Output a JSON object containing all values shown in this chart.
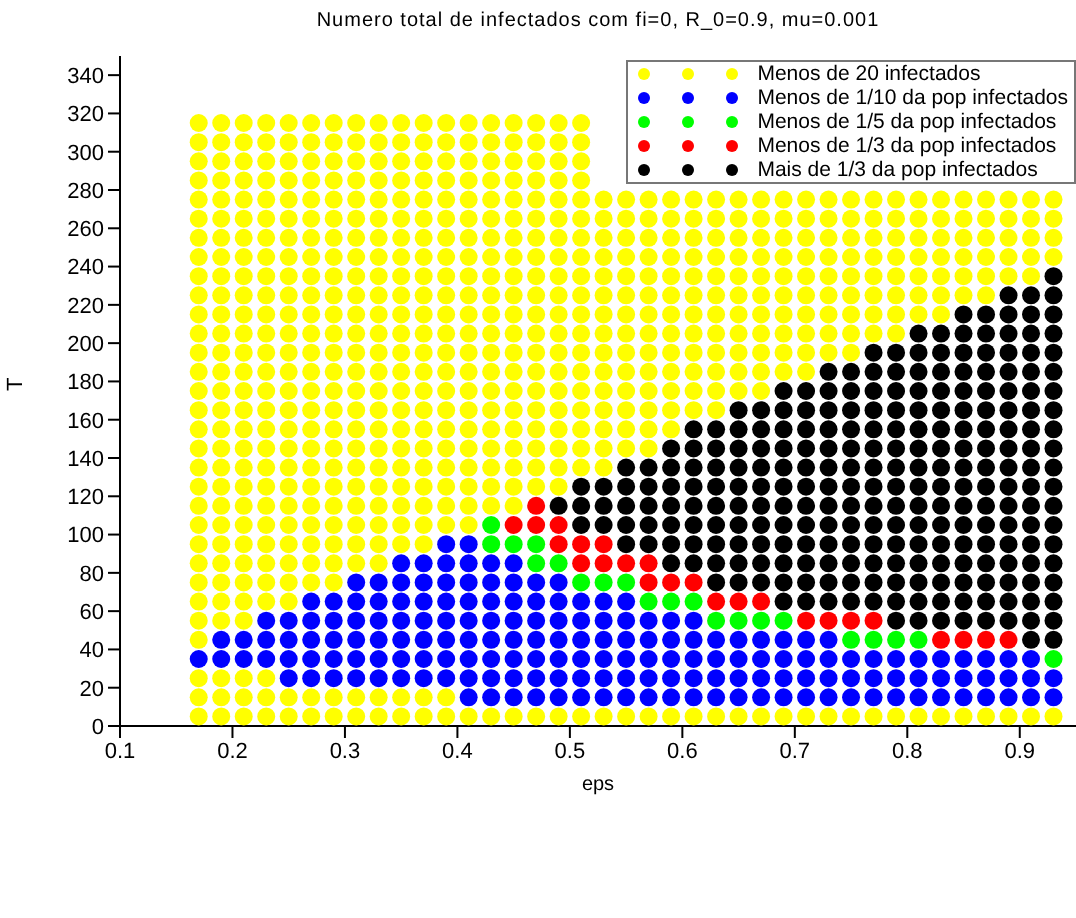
{
  "chart_data": {
    "type": "scatter",
    "title": "Numero total de infectados com fi=0, R_0=0.9,  mu=0.001",
    "xlabel": "eps",
    "ylabel": "T",
    "xlim": [
      0.1,
      0.95
    ],
    "xticks": [
      0.1,
      0.2,
      0.3,
      0.4,
      0.5,
      0.6,
      0.7,
      0.8,
      0.9
    ],
    "ylim": [
      0,
      350
    ],
    "yticks": [
      0,
      20,
      40,
      60,
      80,
      100,
      120,
      140,
      160,
      180,
      200,
      220,
      240,
      260,
      280,
      300,
      320,
      340
    ],
    "marker": "circle",
    "legend": "top right",
    "series": [
      {
        "name": "Menos de 20 infectados",
        "color": "#ffff00",
        "x": [
          0.17,
          0.19,
          0.21,
          0.23,
          0.25,
          0.27,
          0.29,
          0.31,
          0.33,
          0.35,
          0.37,
          0.39,
          0.41,
          0.43,
          0.45,
          0.47,
          0.49,
          0.51,
          0.53,
          0.55,
          0.57,
          0.59,
          0.61,
          0.63,
          0.65,
          0.67,
          0.69,
          0.71,
          0.73,
          0.75,
          0.77,
          0.79,
          0.81,
          0.83,
          0.85,
          0.87,
          0.89,
          0.91,
          0.93,
          0.17,
          0.19,
          0.21,
          0.23,
          0.25,
          0.27,
          0.29,
          0.31,
          0.33,
          0.35,
          0.37,
          0.39,
          0.17,
          0.19,
          0.21,
          0.23,
          0.17,
          0.17,
          0.19,
          0.21,
          0.17,
          0.19,
          0.21,
          0.23,
          0.25,
          0.17,
          0.19,
          0.21,
          0.23,
          0.25,
          0.27,
          0.29,
          0.17,
          0.19,
          0.21,
          0.23,
          0.25,
          0.27,
          0.29,
          0.31,
          0.33,
          0.17,
          0.19,
          0.21,
          0.23,
          0.25,
          0.27,
          0.29,
          0.31,
          0.33,
          0.35,
          0.37,
          0.17,
          0.19,
          0.21,
          0.23,
          0.25,
          0.27,
          0.29,
          0.31,
          0.33,
          0.35,
          0.37,
          0.39,
          0.41,
          0.17,
          0.19,
          0.21,
          0.23,
          0.25,
          0.27,
          0.29,
          0.31,
          0.33,
          0.35,
          0.37,
          0.39,
          0.41,
          0.43,
          0.45,
          0.17,
          0.19,
          0.21,
          0.23,
          0.25,
          0.27,
          0.29,
          0.31,
          0.33,
          0.35,
          0.37,
          0.39,
          0.41,
          0.43,
          0.45,
          0.47,
          0.49,
          0.17,
          0.19,
          0.21,
          0.23,
          0.25,
          0.27,
          0.29,
          0.31,
          0.33,
          0.35,
          0.37,
          0.39,
          0.41,
          0.43,
          0.45,
          0.47,
          0.49,
          0.51,
          0.53,
          0.17,
          0.19,
          0.21,
          0.23,
          0.25,
          0.27,
          0.29,
          0.31,
          0.33,
          0.35,
          0.37,
          0.39,
          0.41,
          0.43,
          0.45,
          0.47,
          0.49,
          0.51,
          0.53,
          0.55,
          0.57,
          0.17,
          0.19,
          0.21,
          0.23,
          0.25,
          0.27,
          0.29,
          0.31,
          0.33,
          0.35,
          0.37,
          0.39,
          0.41,
          0.43,
          0.45,
          0.47,
          0.49,
          0.51,
          0.53,
          0.55,
          0.57,
          0.59,
          0.17,
          0.19,
          0.21,
          0.23,
          0.25,
          0.27,
          0.29,
          0.31,
          0.33,
          0.35,
          0.37,
          0.39,
          0.41,
          0.43,
          0.45,
          0.47,
          0.49,
          0.51,
          0.53,
          0.55,
          0.57,
          0.59,
          0.61,
          0.63,
          0.17,
          0.19,
          0.21,
          0.23,
          0.25,
          0.27,
          0.29,
          0.31,
          0.33,
          0.35,
          0.37,
          0.39,
          0.41,
          0.43,
          0.45,
          0.47,
          0.49,
          0.51,
          0.53,
          0.55,
          0.57,
          0.59,
          0.61,
          0.63,
          0.65,
          0.67,
          0.17,
          0.19,
          0.21,
          0.23,
          0.25,
          0.27,
          0.29,
          0.31,
          0.33,
          0.35,
          0.37,
          0.39,
          0.41,
          0.43,
          0.45,
          0.47,
          0.49,
          0.51,
          0.53,
          0.55,
          0.57,
          0.59,
          0.61,
          0.63,
          0.65,
          0.67,
          0.69,
          0.71,
          0.17,
          0.19,
          0.21,
          0.23,
          0.25,
          0.27,
          0.29,
          0.31,
          0.33,
          0.35,
          0.37,
          0.39,
          0.41,
          0.43,
          0.45,
          0.47,
          0.49,
          0.51,
          0.53,
          0.55,
          0.57,
          0.59,
          0.61,
          0.63,
          0.65,
          0.67,
          0.69,
          0.71,
          0.73,
          0.75,
          0.17,
          0.19,
          0.21,
          0.23,
          0.25,
          0.27,
          0.29,
          0.31,
          0.33,
          0.35,
          0.37,
          0.39,
          0.41,
          0.43,
          0.45,
          0.47,
          0.49,
          0.51,
          0.53,
          0.55,
          0.57,
          0.59,
          0.61,
          0.63,
          0.65,
          0.67,
          0.69,
          0.71,
          0.73,
          0.75,
          0.77,
          0.79,
          0.17,
          0.19,
          0.21,
          0.23,
          0.25,
          0.27,
          0.29,
          0.31,
          0.33,
          0.35,
          0.37,
          0.39,
          0.41,
          0.43,
          0.45,
          0.47,
          0.49,
          0.51,
          0.53,
          0.55,
          0.57,
          0.59,
          0.61,
          0.63,
          0.65,
          0.67,
          0.69,
          0.71,
          0.73,
          0.75,
          0.77,
          0.79,
          0.81,
          0.83,
          0.17,
          0.19,
          0.21,
          0.23,
          0.25,
          0.27,
          0.29,
          0.31,
          0.33,
          0.35,
          0.37,
          0.39,
          0.41,
          0.43,
          0.45,
          0.47,
          0.49,
          0.51,
          0.53,
          0.55,
          0.57,
          0.59,
          0.61,
          0.63,
          0.65,
          0.67,
          0.69,
          0.71,
          0.73,
          0.75,
          0.77,
          0.79,
          0.81,
          0.83,
          0.85,
          0.87,
          0.17,
          0.19,
          0.21,
          0.23,
          0.25,
          0.27,
          0.29,
          0.31,
          0.33,
          0.35,
          0.37,
          0.39,
          0.41,
          0.43,
          0.45,
          0.47,
          0.49,
          0.51,
          0.53,
          0.55,
          0.57,
          0.59,
          0.61,
          0.63,
          0.65,
          0.67,
          0.69,
          0.71,
          0.73,
          0.75,
          0.77,
          0.79,
          0.81,
          0.83,
          0.85,
          0.87,
          0.89,
          0.91,
          0.17,
          0.19,
          0.21,
          0.23,
          0.25,
          0.27,
          0.29,
          0.31,
          0.33,
          0.35,
          0.37,
          0.39,
          0.41,
          0.43,
          0.45,
          0.47,
          0.49,
          0.51,
          0.53,
          0.55,
          0.57,
          0.59,
          0.61,
          0.63,
          0.65,
          0.67,
          0.69,
          0.71,
          0.73,
          0.75,
          0.77,
          0.79,
          0.81,
          0.83,
          0.85,
          0.87,
          0.89,
          0.91,
          0.93,
          0.17,
          0.19,
          0.21,
          0.23,
          0.25,
          0.27,
          0.29,
          0.31,
          0.33,
          0.35,
          0.37,
          0.39,
          0.41,
          0.43,
          0.45,
          0.47,
          0.49,
          0.51,
          0.53,
          0.55,
          0.57,
          0.59,
          0.61,
          0.63,
          0.65,
          0.67,
          0.69,
          0.71,
          0.73,
          0.75,
          0.77,
          0.79,
          0.81,
          0.83,
          0.85,
          0.87,
          0.89,
          0.91,
          0.93,
          0.17,
          0.19,
          0.21,
          0.23,
          0.25,
          0.27,
          0.29,
          0.31,
          0.33,
          0.35,
          0.37,
          0.39,
          0.41,
          0.43,
          0.45,
          0.47,
          0.49,
          0.51,
          0.53,
          0.55,
          0.57,
          0.59,
          0.61,
          0.63,
          0.65,
          0.67,
          0.69,
          0.71,
          0.73,
          0.75,
          0.77,
          0.79,
          0.81,
          0.83,
          0.85,
          0.87,
          0.89,
          0.91,
          0.93,
          0.17,
          0.19,
          0.21,
          0.23,
          0.25,
          0.27,
          0.29,
          0.31,
          0.33,
          0.35,
          0.37,
          0.39,
          0.41,
          0.43,
          0.45,
          0.47,
          0.49,
          0.51,
          0.53,
          0.55,
          0.57,
          0.59,
          0.61,
          0.63,
          0.65,
          0.67,
          0.69,
          0.71,
          0.73,
          0.75,
          0.77,
          0.79,
          0.81,
          0.83,
          0.85,
          0.87,
          0.89,
          0.91,
          0.93,
          0.17,
          0.19,
          0.21,
          0.23,
          0.25,
          0.27,
          0.29,
          0.31,
          0.33,
          0.35,
          0.37,
          0.39,
          0.41,
          0.43,
          0.45,
          0.47,
          0.49,
          0.51,
          0.17,
          0.19,
          0.21,
          0.23,
          0.25,
          0.27,
          0.29,
          0.31,
          0.33,
          0.35,
          0.37,
          0.39,
          0.41,
          0.43,
          0.45,
          0.47,
          0.49,
          0.51,
          0.17,
          0.19,
          0.21,
          0.23,
          0.25,
          0.27,
          0.29,
          0.31,
          0.33,
          0.35,
          0.37,
          0.39,
          0.41,
          0.43,
          0.45,
          0.47,
          0.49,
          0.51,
          0.17,
          0.19,
          0.21,
          0.23,
          0.25,
          0.27,
          0.29,
          0.31,
          0.33,
          0.35,
          0.37,
          0.39,
          0.41,
          0.43,
          0.45,
          0.47,
          0.49,
          0.51
        ],
        "values": [
          5,
          5,
          5,
          5,
          5,
          5,
          5,
          5,
          5,
          5,
          5,
          5,
          5,
          5,
          5,
          5,
          5,
          5,
          5,
          5,
          5,
          5,
          5,
          5,
          5,
          5,
          5,
          5,
          5,
          5,
          5,
          5,
          5,
          5,
          5,
          5,
          5,
          5,
          5,
          15,
          15,
          15,
          15,
          15,
          15,
          15,
          15,
          15,
          15,
          15,
          15,
          25,
          25,
          25,
          25,
          45,
          55,
          55,
          55,
          65,
          65,
          65,
          65,
          65,
          75,
          75,
          75,
          75,
          75,
          75,
          75,
          85,
          85,
          85,
          85,
          85,
          85,
          85,
          85,
          85,
          95,
          95,
          95,
          95,
          95,
          95,
          95,
          95,
          95,
          95,
          95,
          105,
          105,
          105,
          105,
          105,
          105,
          105,
          105,
          105,
          105,
          105,
          105,
          105,
          115,
          115,
          115,
          115,
          115,
          115,
          115,
          115,
          115,
          115,
          115,
          115,
          115,
          115,
          115,
          125,
          125,
          125,
          125,
          125,
          125,
          125,
          125,
          125,
          125,
          125,
          125,
          125,
          125,
          125,
          125,
          125,
          135,
          135,
          135,
          135,
          135,
          135,
          135,
          135,
          135,
          135,
          135,
          135,
          135,
          135,
          135,
          135,
          135,
          135,
          135,
          145,
          145,
          145,
          145,
          145,
          145,
          145,
          145,
          145,
          145,
          145,
          145,
          145,
          145,
          145,
          145,
          145,
          145,
          145,
          145,
          145,
          155,
          155,
          155,
          155,
          155,
          155,
          155,
          155,
          155,
          155,
          155,
          155,
          155,
          155,
          155,
          155,
          155,
          155,
          155,
          155,
          155,
          155,
          165,
          165,
          165,
          165,
          165,
          165,
          165,
          165,
          165,
          165,
          165,
          165,
          165,
          165,
          165,
          165,
          165,
          165,
          165,
          165,
          165,
          165,
          165,
          165,
          175,
          175,
          175,
          175,
          175,
          175,
          175,
          175,
          175,
          175,
          175,
          175,
          175,
          175,
          175,
          175,
          175,
          175,
          175,
          175,
          175,
          175,
          175,
          175,
          175,
          175,
          185,
          185,
          185,
          185,
          185,
          185,
          185,
          185,
          185,
          185,
          185,
          185,
          185,
          185,
          185,
          185,
          185,
          185,
          185,
          185,
          185,
          185,
          185,
          185,
          185,
          185,
          185,
          185,
          195,
          195,
          195,
          195,
          195,
          195,
          195,
          195,
          195,
          195,
          195,
          195,
          195,
          195,
          195,
          195,
          195,
          195,
          195,
          195,
          195,
          195,
          195,
          195,
          195,
          195,
          195,
          195,
          195,
          195,
          205,
          205,
          205,
          205,
          205,
          205,
          205,
          205,
          205,
          205,
          205,
          205,
          205,
          205,
          205,
          205,
          205,
          205,
          205,
          205,
          205,
          205,
          205,
          205,
          205,
          205,
          205,
          205,
          205,
          205,
          205,
          205,
          215,
          215,
          215,
          215,
          215,
          215,
          215,
          215,
          215,
          215,
          215,
          215,
          215,
          215,
          215,
          215,
          215,
          215,
          215,
          215,
          215,
          215,
          215,
          215,
          215,
          215,
          215,
          215,
          215,
          215,
          215,
          215,
          215,
          215,
          225,
          225,
          225,
          225,
          225,
          225,
          225,
          225,
          225,
          225,
          225,
          225,
          225,
          225,
          225,
          225,
          225,
          225,
          225,
          225,
          225,
          225,
          225,
          225,
          225,
          225,
          225,
          225,
          225,
          225,
          225,
          225,
          225,
          225,
          225,
          225,
          235,
          235,
          235,
          235,
          235,
          235,
          235,
          235,
          235,
          235,
          235,
          235,
          235,
          235,
          235,
          235,
          235,
          235,
          235,
          235,
          235,
          235,
          235,
          235,
          235,
          235,
          235,
          235,
          235,
          235,
          235,
          235,
          235,
          235,
          235,
          235,
          235,
          235,
          245,
          245,
          245,
          245,
          245,
          245,
          245,
          245,
          245,
          245,
          245,
          245,
          245,
          245,
          245,
          245,
          245,
          245,
          245,
          245,
          245,
          245,
          245,
          245,
          245,
          245,
          245,
          245,
          245,
          245,
          245,
          245,
          245,
          245,
          245,
          245,
          245,
          245,
          245,
          255,
          255,
          255,
          255,
          255,
          255,
          255,
          255,
          255,
          255,
          255,
          255,
          255,
          255,
          255,
          255,
          255,
          255,
          255,
          255,
          255,
          255,
          255,
          255,
          255,
          255,
          255,
          255,
          255,
          255,
          255,
          255,
          255,
          255,
          255,
          255,
          255,
          255,
          255,
          265,
          265,
          265,
          265,
          265,
          265,
          265,
          265,
          265,
          265,
          265,
          265,
          265,
          265,
          265,
          265,
          265,
          265,
          265,
          265,
          265,
          265,
          265,
          265,
          265,
          265,
          265,
          265,
          265,
          265,
          265,
          265,
          265,
          265,
          265,
          265,
          265,
          265,
          265,
          275,
          275,
          275,
          275,
          275,
          275,
          275,
          275,
          275,
          275,
          275,
          275,
          275,
          275,
          275,
          275,
          275,
          275,
          275,
          275,
          275,
          275,
          275,
          275,
          275,
          275,
          275,
          275,
          275,
          275,
          275,
          275,
          275,
          275,
          275,
          275,
          275,
          275,
          275,
          285,
          285,
          285,
          285,
          285,
          285,
          285,
          285,
          285,
          285,
          285,
          285,
          285,
          285,
          285,
          285,
          285,
          285,
          295,
          295,
          295,
          295,
          295,
          295,
          295,
          295,
          295,
          295,
          295,
          295,
          295,
          295,
          295,
          295,
          295,
          295,
          305,
          305,
          305,
          305,
          305,
          305,
          305,
          305,
          305,
          305,
          305,
          305,
          305,
          305,
          305,
          305,
          305,
          305,
          315,
          315,
          315,
          315,
          315,
          315,
          315,
          315,
          315,
          315,
          315,
          315,
          315,
          315,
          315,
          315,
          315,
          315
        ]
      },
      {
        "name": "Menos de 1/10 da pop infectados",
        "color": "#0000ff",
        "x": [
          0.41,
          0.43,
          0.45,
          0.47,
          0.49,
          0.51,
          0.53,
          0.55,
          0.57,
          0.59,
          0.61,
          0.63,
          0.65,
          0.67,
          0.69,
          0.71,
          0.73,
          0.75,
          0.77,
          0.79,
          0.81,
          0.83,
          0.85,
          0.87,
          0.89,
          0.91,
          0.93,
          0.25,
          0.27,
          0.29,
          0.31,
          0.33,
          0.35,
          0.37,
          0.39,
          0.41,
          0.43,
          0.45,
          0.47,
          0.49,
          0.51,
          0.53,
          0.55,
          0.57,
          0.59,
          0.61,
          0.63,
          0.65,
          0.67,
          0.69,
          0.71,
          0.73,
          0.75,
          0.77,
          0.79,
          0.81,
          0.83,
          0.85,
          0.87,
          0.89,
          0.91,
          0.93,
          0.17,
          0.19,
          0.21,
          0.23,
          0.25,
          0.27,
          0.29,
          0.31,
          0.33,
          0.35,
          0.37,
          0.39,
          0.41,
          0.43,
          0.45,
          0.47,
          0.49,
          0.51,
          0.53,
          0.55,
          0.57,
          0.59,
          0.61,
          0.63,
          0.65,
          0.67,
          0.69,
          0.71,
          0.73,
          0.75,
          0.77,
          0.79,
          0.81,
          0.83,
          0.85,
          0.87,
          0.89,
          0.91,
          0.19,
          0.21,
          0.23,
          0.25,
          0.27,
          0.29,
          0.31,
          0.33,
          0.35,
          0.37,
          0.39,
          0.41,
          0.43,
          0.45,
          0.47,
          0.49,
          0.51,
          0.53,
          0.55,
          0.57,
          0.59,
          0.61,
          0.63,
          0.65,
          0.67,
          0.69,
          0.71,
          0.73,
          0.23,
          0.25,
          0.27,
          0.29,
          0.31,
          0.33,
          0.35,
          0.37,
          0.39,
          0.41,
          0.43,
          0.45,
          0.47,
          0.49,
          0.51,
          0.53,
          0.55,
          0.57,
          0.59,
          0.61,
          0.27,
          0.29,
          0.31,
          0.33,
          0.35,
          0.37,
          0.39,
          0.41,
          0.43,
          0.45,
          0.47,
          0.49,
          0.51,
          0.53,
          0.55,
          0.31,
          0.33,
          0.35,
          0.37,
          0.39,
          0.41,
          0.43,
          0.45,
          0.47,
          0.49,
          0.35,
          0.37,
          0.39,
          0.41,
          0.43,
          0.45,
          0.39,
          0.41
        ],
        "values": [
          15,
          15,
          15,
          15,
          15,
          15,
          15,
          15,
          15,
          15,
          15,
          15,
          15,
          15,
          15,
          15,
          15,
          15,
          15,
          15,
          15,
          15,
          15,
          15,
          15,
          15,
          15,
          25,
          25,
          25,
          25,
          25,
          25,
          25,
          25,
          25,
          25,
          25,
          25,
          25,
          25,
          25,
          25,
          25,
          25,
          25,
          25,
          25,
          25,
          25,
          25,
          25,
          25,
          25,
          25,
          25,
          25,
          25,
          25,
          25,
          25,
          25,
          35,
          35,
          35,
          35,
          35,
          35,
          35,
          35,
          35,
          35,
          35,
          35,
          35,
          35,
          35,
          35,
          35,
          35,
          35,
          35,
          35,
          35,
          35,
          35,
          35,
          35,
          35,
          35,
          35,
          35,
          35,
          35,
          35,
          35,
          35,
          35,
          35,
          35,
          45,
          45,
          45,
          45,
          45,
          45,
          45,
          45,
          45,
          45,
          45,
          45,
          45,
          45,
          45,
          45,
          45,
          45,
          45,
          45,
          45,
          45,
          45,
          45,
          45,
          45,
          45,
          45,
          55,
          55,
          55,
          55,
          55,
          55,
          55,
          55,
          55,
          55,
          55,
          55,
          55,
          55,
          55,
          55,
          55,
          55,
          55,
          55,
          65,
          65,
          65,
          65,
          65,
          65,
          65,
          65,
          65,
          65,
          65,
          65,
          65,
          65,
          65,
          75,
          75,
          75,
          75,
          75,
          75,
          75,
          75,
          75,
          75,
          85,
          85,
          85,
          85,
          85,
          85,
          95,
          95
        ]
      },
      {
        "name": "Menos de 1/5 da pop infectados",
        "color": "#00ff00",
        "x": [
          0.93,
          0.75,
          0.77,
          0.79,
          0.81,
          0.63,
          0.65,
          0.67,
          0.69,
          0.57,
          0.59,
          0.61,
          0.51,
          0.53,
          0.55,
          0.47,
          0.49,
          0.43,
          0.45,
          0.47,
          0.43
        ],
        "values": [
          35,
          45,
          45,
          45,
          45,
          55,
          55,
          55,
          55,
          65,
          65,
          65,
          75,
          75,
          75,
          85,
          85,
          95,
          95,
          95,
          105
        ]
      },
      {
        "name": "Menos de 1/3 da pop infectados",
        "color": "#ff0000",
        "x": [
          0.83,
          0.85,
          0.87,
          0.89,
          0.71,
          0.73,
          0.75,
          0.77,
          0.63,
          0.65,
          0.67,
          0.57,
          0.59,
          0.61,
          0.51,
          0.53,
          0.55,
          0.57,
          0.49,
          0.51,
          0.53,
          0.45,
          0.47,
          0.49,
          0.47
        ],
        "values": [
          45,
          45,
          45,
          45,
          55,
          55,
          55,
          55,
          65,
          65,
          65,
          75,
          75,
          75,
          85,
          85,
          85,
          85,
          95,
          95,
          95,
          105,
          105,
          105,
          115
        ]
      },
      {
        "name": "Mais de 1/3 da pop infectados",
        "color": "#000000",
        "x": [
          0.91,
          0.93,
          0.79,
          0.81,
          0.83,
          0.85,
          0.87,
          0.89,
          0.91,
          0.93,
          0.69,
          0.71,
          0.73,
          0.75,
          0.77,
          0.79,
          0.81,
          0.83,
          0.85,
          0.87,
          0.89,
          0.91,
          0.93,
          0.63,
          0.65,
          0.67,
          0.69,
          0.71,
          0.73,
          0.75,
          0.77,
          0.79,
          0.81,
          0.83,
          0.85,
          0.87,
          0.89,
          0.91,
          0.93,
          0.59,
          0.61,
          0.63,
          0.65,
          0.67,
          0.69,
          0.71,
          0.73,
          0.75,
          0.77,
          0.79,
          0.81,
          0.83,
          0.85,
          0.87,
          0.89,
          0.91,
          0.93,
          0.55,
          0.57,
          0.59,
          0.61,
          0.63,
          0.65,
          0.67,
          0.69,
          0.71,
          0.73,
          0.75,
          0.77,
          0.79,
          0.81,
          0.83,
          0.85,
          0.87,
          0.89,
          0.91,
          0.93,
          0.51,
          0.53,
          0.55,
          0.57,
          0.59,
          0.61,
          0.63,
          0.65,
          0.67,
          0.69,
          0.71,
          0.73,
          0.75,
          0.77,
          0.79,
          0.81,
          0.83,
          0.85,
          0.87,
          0.89,
          0.91,
          0.93,
          0.49,
          0.51,
          0.53,
          0.55,
          0.57,
          0.59,
          0.61,
          0.63,
          0.65,
          0.67,
          0.69,
          0.71,
          0.73,
          0.75,
          0.77,
          0.79,
          0.81,
          0.83,
          0.85,
          0.87,
          0.89,
          0.91,
          0.93,
          0.51,
          0.53,
          0.55,
          0.57,
          0.59,
          0.61,
          0.63,
          0.65,
          0.67,
          0.69,
          0.71,
          0.73,
          0.75,
          0.77,
          0.79,
          0.81,
          0.83,
          0.85,
          0.87,
          0.89,
          0.91,
          0.93,
          0.55,
          0.57,
          0.59,
          0.61,
          0.63,
          0.65,
          0.67,
          0.69,
          0.71,
          0.73,
          0.75,
          0.77,
          0.79,
          0.81,
          0.83,
          0.85,
          0.87,
          0.89,
          0.91,
          0.93,
          0.59,
          0.61,
          0.63,
          0.65,
          0.67,
          0.69,
          0.71,
          0.73,
          0.75,
          0.77,
          0.79,
          0.81,
          0.83,
          0.85,
          0.87,
          0.89,
          0.91,
          0.93,
          0.61,
          0.63,
          0.65,
          0.67,
          0.69,
          0.71,
          0.73,
          0.75,
          0.77,
          0.79,
          0.81,
          0.83,
          0.85,
          0.87,
          0.89,
          0.91,
          0.93,
          0.65,
          0.67,
          0.69,
          0.71,
          0.73,
          0.75,
          0.77,
          0.79,
          0.81,
          0.83,
          0.85,
          0.87,
          0.89,
          0.91,
          0.93,
          0.69,
          0.71,
          0.73,
          0.75,
          0.77,
          0.79,
          0.81,
          0.83,
          0.85,
          0.87,
          0.89,
          0.91,
          0.93,
          0.73,
          0.75,
          0.77,
          0.79,
          0.81,
          0.83,
          0.85,
          0.87,
          0.89,
          0.91,
          0.93,
          0.77,
          0.79,
          0.81,
          0.83,
          0.85,
          0.87,
          0.89,
          0.91,
          0.93,
          0.81,
          0.83,
          0.85,
          0.87,
          0.89,
          0.91,
          0.93,
          0.85,
          0.87,
          0.89,
          0.91,
          0.93,
          0.89,
          0.91,
          0.93,
          0.93
        ],
        "values": [
          45,
          45,
          55,
          55,
          55,
          55,
          55,
          55,
          55,
          55,
          65,
          65,
          65,
          65,
          65,
          65,
          65,
          65,
          65,
          65,
          65,
          65,
          65,
          75,
          75,
          75,
          75,
          75,
          75,
          75,
          75,
          75,
          75,
          75,
          75,
          75,
          75,
          75,
          75,
          85,
          85,
          85,
          85,
          85,
          85,
          85,
          85,
          85,
          85,
          85,
          85,
          85,
          85,
          85,
          85,
          85,
          85,
          95,
          95,
          95,
          95,
          95,
          95,
          95,
          95,
          95,
          95,
          95,
          95,
          95,
          95,
          95,
          95,
          95,
          95,
          95,
          95,
          105,
          105,
          105,
          105,
          105,
          105,
          105,
          105,
          105,
          105,
          105,
          105,
          105,
          105,
          105,
          105,
          105,
          105,
          105,
          105,
          105,
          105,
          115,
          115,
          115,
          115,
          115,
          115,
          115,
          115,
          115,
          115,
          115,
          115,
          115,
          115,
          115,
          115,
          115,
          115,
          115,
          115,
          115,
          115,
          115,
          125,
          125,
          125,
          125,
          125,
          125,
          125,
          125,
          125,
          125,
          125,
          125,
          125,
          125,
          125,
          125,
          125,
          125,
          125,
          125,
          125,
          125,
          135,
          135,
          135,
          135,
          135,
          135,
          135,
          135,
          135,
          135,
          135,
          135,
          135,
          135,
          135,
          135,
          135,
          135,
          135,
          135,
          145,
          145,
          145,
          145,
          145,
          145,
          145,
          145,
          145,
          145,
          145,
          145,
          145,
          145,
          145,
          145,
          145,
          145,
          155,
          155,
          155,
          155,
          155,
          155,
          155,
          155,
          155,
          155,
          155,
          155,
          155,
          155,
          155,
          155,
          155,
          165,
          165,
          165,
          165,
          165,
          165,
          165,
          165,
          165,
          165,
          165,
          165,
          165,
          165,
          165,
          175,
          175,
          175,
          175,
          175,
          175,
          175,
          175,
          175,
          175,
          175,
          175,
          175,
          185,
          185,
          185,
          185,
          185,
          185,
          185,
          185,
          185,
          185,
          185,
          195,
          195,
          195,
          195,
          195,
          195,
          195,
          195,
          195,
          205,
          205,
          205,
          205,
          205,
          205,
          205,
          215,
          215,
          215,
          215,
          215,
          225,
          225,
          225,
          235
        ]
      }
    ]
  }
}
